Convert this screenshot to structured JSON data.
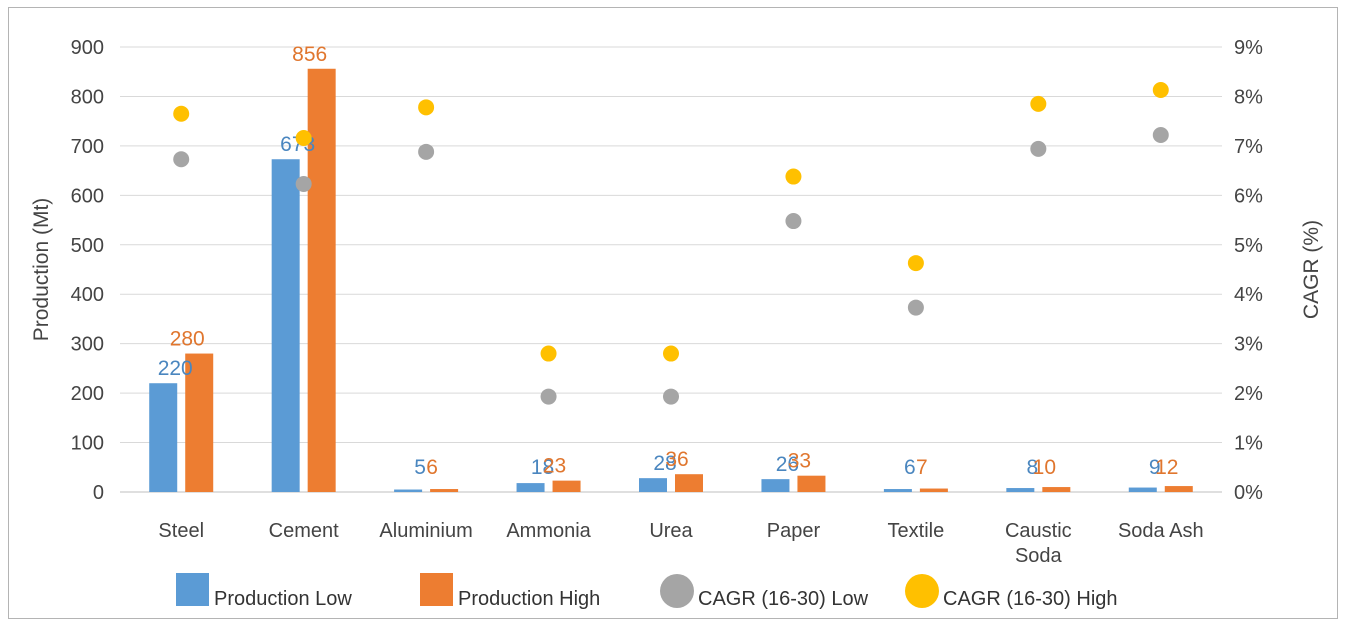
{
  "chart_data": {
    "type": "bar",
    "title": "",
    "categories": [
      "Steel",
      "Cement",
      "Aluminium",
      "Ammonia",
      "Urea",
      "Paper",
      "Textile",
      "Caustic Soda",
      "Soda Ash"
    ],
    "ylabel": "Production (Mt)",
    "y2label": "CAGR (%)",
    "ylim": [
      0,
      900
    ],
    "y2lim": [
      0,
      9
    ],
    "yticks": [
      "0",
      "100",
      "200",
      "300",
      "400",
      "500",
      "600",
      "700",
      "800",
      "900"
    ],
    "y2ticks": [
      "0%",
      "1%",
      "2%",
      "3%",
      "4%",
      "5%",
      "6%",
      "7%",
      "8%",
      "9%"
    ],
    "grid": true,
    "legend_position": "bottom",
    "series": [
      {
        "name": "Production Low",
        "type": "bar",
        "axis": "left",
        "color": "#5b9bd5",
        "values": [
          220,
          673,
          5,
          18,
          28,
          26,
          6,
          8,
          9
        ],
        "labels": [
          "220",
          "673",
          "5",
          "18",
          "28",
          "26",
          "6",
          "8",
          "9"
        ]
      },
      {
        "name": "Production High",
        "type": "bar",
        "axis": "left",
        "color": "#ed7d31",
        "values": [
          280,
          856,
          6,
          23,
          36,
          33,
          7,
          10,
          12
        ],
        "labels": [
          "280",
          "856",
          "6",
          "23",
          "36",
          "33",
          "7",
          "10",
          "12"
        ]
      },
      {
        "name": "CAGR (16-30) Low",
        "type": "scatter",
        "axis": "right",
        "color": "#a5a5a5",
        "values": [
          6.73,
          6.23,
          6.88,
          1.93,
          1.93,
          5.48,
          3.73,
          6.94,
          7.22
        ]
      },
      {
        "name": "CAGR (16-30) High",
        "type": "scatter",
        "axis": "right",
        "color": "#ffc000",
        "values": [
          7.65,
          7.16,
          7.78,
          2.8,
          2.8,
          6.38,
          4.63,
          7.85,
          8.13
        ]
      }
    ]
  }
}
